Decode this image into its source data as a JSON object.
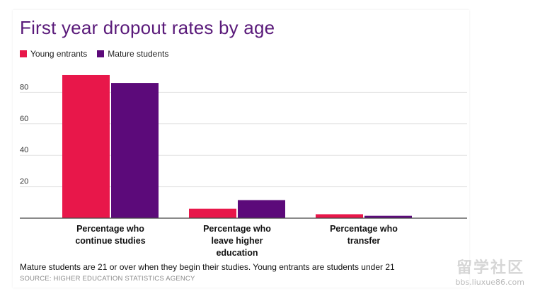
{
  "chart_data": {
    "type": "bar",
    "title": "First year dropout rates by age",
    "categories": [
      [
        "Percentage who",
        "continue studies"
      ],
      [
        "Percentage who",
        "leave higher",
        "education"
      ],
      [
        "Percentage who",
        "transfer"
      ]
    ],
    "series": [
      {
        "name": "Young entrants",
        "color": "#e8174a",
        "values": [
          91,
          6,
          2.5
        ]
      },
      {
        "name": "Mature students",
        "color": "#5c0a7a",
        "values": [
          86,
          11.5,
          1.5
        ]
      }
    ],
    "y_ticks": [
      20,
      40,
      60,
      80
    ],
    "ylim": [
      0,
      100
    ],
    "xlabel": "",
    "ylabel": "",
    "grid": true,
    "legend_position": "top-left"
  },
  "note": "Mature students are 21 or over when they begin their studies. Young entrants are students under 21",
  "source": "SOURCE: HIGHER EDUCATION STATISTICS AGENCY",
  "watermark": {
    "mark": "留学社区",
    "url": "bbs.liuxue86.com"
  },
  "colors": {
    "title": "#5a1a7a",
    "grid": "#e2e2e2",
    "axis": "#444444"
  }
}
